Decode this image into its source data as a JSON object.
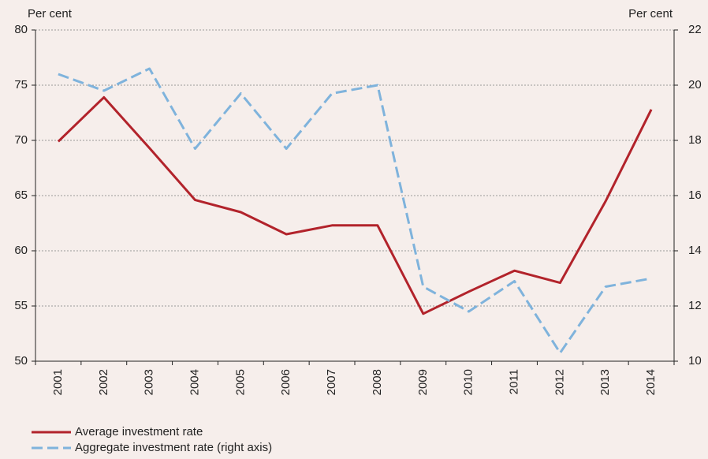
{
  "chart_data": {
    "type": "line",
    "y_label": "Per cent",
    "y2_label": "Per cent",
    "categories": [
      "2001",
      "2002",
      "2003",
      "2004",
      "2005",
      "2006",
      "2007",
      "2008",
      "2009",
      "2010",
      "2011",
      "2012",
      "2013",
      "2014"
    ],
    "series": [
      {
        "name": "Average investment rate",
        "color": "#b2232b",
        "dash": false,
        "values": [
          69.9,
          73.9,
          69.3,
          64.6,
          63.5,
          61.5,
          62.3,
          62.3,
          54.3,
          56.3,
          58.2,
          57.1,
          64.5,
          72.8
        ]
      },
      {
        "name": "Aggregate investment rate (right axis)",
        "color": "#7fb3dc",
        "dash": true,
        "axis": "y2",
        "values": [
          20.4,
          19.8,
          20.6,
          17.7,
          19.7,
          17.7,
          19.7,
          20.0,
          12.7,
          11.8,
          12.9,
          10.3,
          12.7,
          13.0
        ]
      }
    ],
    "ylim": [
      50,
      80
    ],
    "yticks": [
      50,
      55,
      60,
      65,
      70,
      75,
      80
    ],
    "y2lim": [
      10,
      22
    ],
    "y2ticks": [
      10,
      12,
      14,
      16,
      18,
      20,
      22
    ],
    "grid": true
  }
}
